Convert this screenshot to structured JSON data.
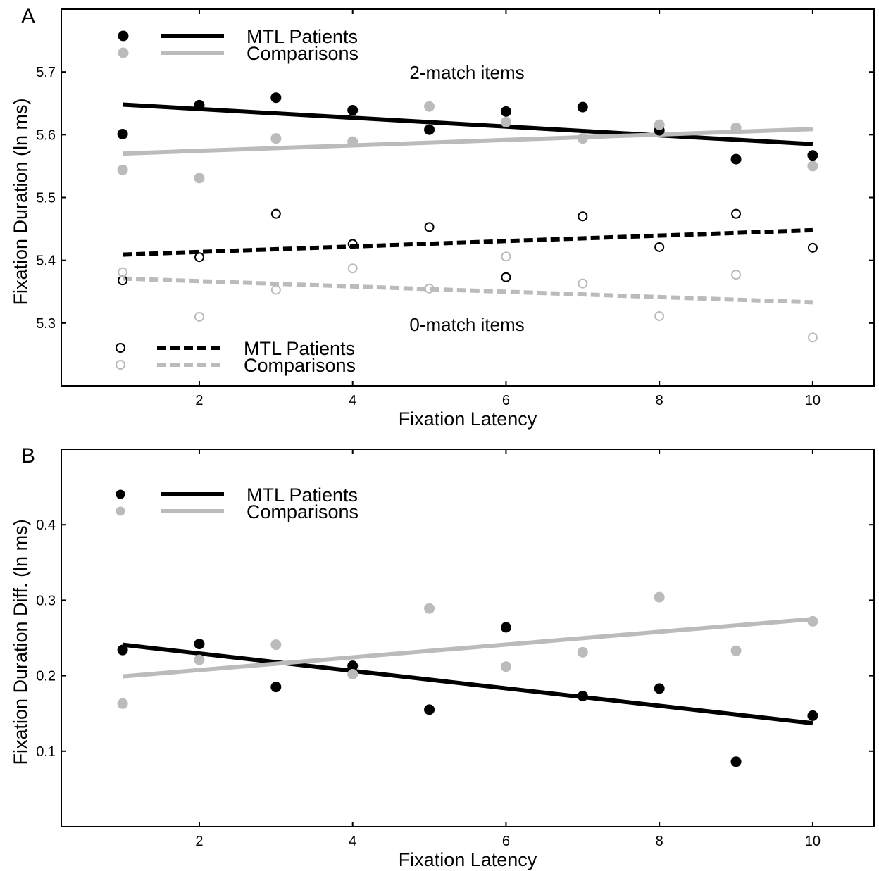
{
  "chart_data": [
    {
      "panel": "A",
      "type": "scatter",
      "xlabel": "Fixation Latency",
      "ylabel": "Fixation Duration (ln ms)",
      "xlim": [
        0.2,
        10.8
      ],
      "ylim": [
        5.2,
        5.8
      ],
      "xticks": [
        2,
        4,
        6,
        8,
        10
      ],
      "xtick_labels": [
        "2",
        "4",
        "6",
        "8",
        "10"
      ],
      "yticks": [
        5.3,
        5.4,
        5.5,
        5.6,
        5.7
      ],
      "ytick_labels": [
        "5.3",
        "5.4",
        "5.5",
        "5.6",
        "5.7"
      ],
      "grid": false,
      "annotations": [
        "2-match items",
        "0-match items"
      ],
      "legend_upper": [
        "MTL Patients",
        "Comparisons"
      ],
      "legend_lower": [
        "MTL Patients",
        "Comparisons"
      ],
      "series": [
        {
          "name": "MTL Patients",
          "group": "2-match items",
          "color": "#000000",
          "marker": "filled",
          "line": "solid",
          "x": [
            1,
            2,
            3,
            4,
            5,
            6,
            7,
            8,
            9,
            10
          ],
          "y": [
            5.601,
            5.647,
            5.659,
            5.639,
            5.608,
            5.637,
            5.644,
            5.607,
            5.561,
            5.567
          ],
          "fit": [
            [
              1,
              5.648
            ],
            [
              10,
              5.585
            ]
          ]
        },
        {
          "name": "Comparisons",
          "group": "2-match items",
          "color": "#bbbbbb",
          "marker": "filled",
          "line": "solid",
          "x": [
            1,
            2,
            3,
            4,
            5,
            6,
            7,
            8,
            9,
            10
          ],
          "y": [
            5.544,
            5.531,
            5.594,
            5.589,
            5.645,
            5.62,
            5.594,
            5.616,
            5.611,
            5.55
          ],
          "fit": [
            [
              1,
              5.57
            ],
            [
              10,
              5.609
            ]
          ]
        },
        {
          "name": "MTL Patients",
          "group": "0-match items",
          "color": "#000000",
          "marker": "open",
          "line": "dashed",
          "x": [
            1,
            2,
            3,
            4,
            5,
            6,
            7,
            8,
            9,
            10
          ],
          "y": [
            5.368,
            5.405,
            5.474,
            5.426,
            5.453,
            5.373,
            5.47,
            5.421,
            5.474,
            5.42
          ],
          "fit": [
            [
              1,
              5.409
            ],
            [
              10,
              5.448
            ]
          ]
        },
        {
          "name": "Comparisons",
          "group": "0-match items",
          "color": "#bbbbbb",
          "marker": "open",
          "line": "dashed",
          "x": [
            1,
            2,
            3,
            4,
            5,
            6,
            7,
            8,
            9,
            10
          ],
          "y": [
            5.381,
            5.31,
            5.353,
            5.387,
            5.355,
            5.406,
            5.363,
            5.311,
            5.377,
            5.277
          ],
          "fit": [
            [
              1,
              5.371
            ],
            [
              10,
              5.333
            ]
          ]
        }
      ]
    },
    {
      "panel": "B",
      "type": "scatter",
      "xlabel": "Fixation Latency",
      "ylabel": "Fixation Duration Diff.  (ln ms)",
      "xlim": [
        0.2,
        10.8
      ],
      "ylim": [
        0.0,
        0.5
      ],
      "xticks": [
        2,
        4,
        6,
        8,
        10
      ],
      "xtick_labels": [
        "2",
        "4",
        "6",
        "8",
        "10"
      ],
      "yticks": [
        0.1,
        0.2,
        0.3,
        0.4
      ],
      "ytick_labels": [
        "0.1",
        "0.2",
        "0.3",
        "0.4"
      ],
      "grid": false,
      "legend": [
        "MTL Patients",
        "Comparisons"
      ],
      "series": [
        {
          "name": "MTL Patients",
          "color": "#000000",
          "marker": "filled",
          "line": "solid",
          "x": [
            1,
            2,
            3,
            4,
            5,
            6,
            7,
            8,
            9,
            10
          ],
          "y": [
            0.234,
            0.242,
            0.185,
            0.213,
            0.155,
            0.264,
            0.173,
            0.183,
            0.086,
            0.147
          ],
          "fit": [
            [
              1,
              0.241
            ],
            [
              10,
              0.137
            ]
          ]
        },
        {
          "name": "Comparisons",
          "color": "#bbbbbb",
          "marker": "filled",
          "line": "solid",
          "x": [
            1,
            2,
            3,
            4,
            5,
            6,
            7,
            8,
            9,
            10
          ],
          "y": [
            0.163,
            0.221,
            0.241,
            0.202,
            0.289,
            0.212,
            0.231,
            0.304,
            0.233,
            0.272
          ],
          "fit": [
            [
              1,
              0.199
            ],
            [
              10,
              0.275
            ]
          ]
        }
      ]
    }
  ]
}
